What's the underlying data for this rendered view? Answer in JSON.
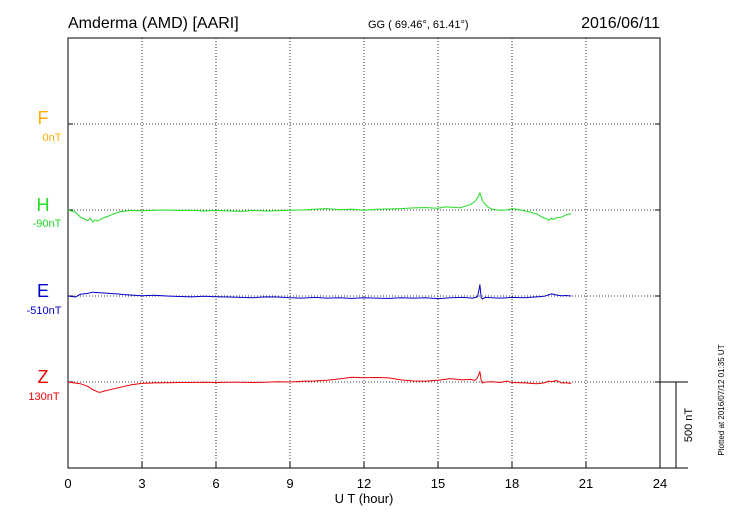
{
  "header": {
    "station": "Amderma (AMD)  [AARI]",
    "coords": "GG ( 69.46°,  61.41°)",
    "date": "2016/06/11"
  },
  "footer": {
    "plotted": "Plotted at 2016/07/12 01:35 UT"
  },
  "colors": {
    "F": "#ffaa00",
    "H": "#22dd22",
    "E": "#0000cc",
    "Z": "#ee0000",
    "grid": "#000000"
  },
  "chart_data": {
    "type": "line",
    "xlabel": "U T (hour)",
    "xlim": [
      0,
      24
    ],
    "xticks": [
      "0",
      "3",
      "6",
      "9",
      "12",
      "15",
      "18",
      "21",
      "24"
    ],
    "scale_bar": "500 nT",
    "scale_bar_nT": 500,
    "series": [
      {
        "name": "F",
        "baseline": "0nT",
        "x": [],
        "y": []
      },
      {
        "name": "H",
        "baseline": "-90nT",
        "x": [
          0.0,
          0.3,
          0.5,
          0.7,
          0.8,
          0.9,
          1.0,
          1.1,
          1.2,
          1.3,
          1.4,
          1.6,
          1.8,
          2.0,
          2.2,
          2.5,
          3.0,
          3.5,
          4.0,
          4.5,
          5.0,
          5.5,
          6.0,
          6.5,
          7.0,
          7.5,
          8.0,
          8.5,
          9.0,
          9.5,
          10.0,
          10.5,
          11.0,
          11.5,
          12.0,
          12.5,
          13.0,
          13.5,
          14.0,
          14.5,
          15.0,
          15.3,
          15.6,
          15.9,
          16.1,
          16.3,
          16.5,
          16.6,
          16.7,
          16.8,
          16.9,
          17.0,
          17.2,
          17.5,
          17.8,
          18.0,
          18.2,
          18.5,
          18.8,
          19.0,
          19.2,
          19.4,
          19.5,
          19.6,
          19.7,
          19.8,
          20.0,
          20.2,
          20.4
        ],
        "y": [
          0,
          -12,
          -40,
          -55,
          -62,
          -48,
          -70,
          -58,
          -64,
          -55,
          -48,
          -38,
          -25,
          -15,
          -8,
          -3,
          -5,
          -2,
          0,
          -3,
          -1,
          -6,
          -3,
          -5,
          -8,
          -3,
          -6,
          -4,
          -2,
          0,
          4,
          8,
          2,
          5,
          -2,
          4,
          6,
          8,
          12,
          14,
          10,
          18,
          16,
          12,
          22,
          30,
          50,
          70,
          100,
          55,
          35,
          20,
          4,
          -2,
          0,
          8,
          4,
          -4,
          -15,
          -22,
          -40,
          -52,
          -60,
          -48,
          -55,
          -45,
          -42,
          -28,
          -22
        ]
      },
      {
        "name": "E",
        "baseline": "-510nT",
        "x": [
          0.0,
          0.3,
          0.5,
          0.8,
          1.0,
          1.2,
          1.4,
          1.6,
          1.8,
          2.0,
          2.3,
          2.6,
          3.0,
          3.5,
          4.0,
          4.5,
          5.0,
          5.5,
          6.0,
          6.5,
          7.0,
          7.5,
          8.0,
          8.5,
          9.0,
          9.5,
          10.0,
          10.5,
          11.0,
          11.5,
          12.0,
          12.5,
          13.0,
          13.5,
          14.0,
          14.5,
          15.0,
          15.5,
          16.0,
          16.4,
          16.6,
          16.7,
          16.75,
          16.8,
          16.9,
          17.2,
          17.5,
          18.0,
          18.5,
          19.0,
          19.3,
          19.5,
          19.6,
          19.8,
          20.0,
          20.2,
          20.4
        ],
        "y": [
          0,
          -6,
          10,
          15,
          22,
          20,
          18,
          16,
          14,
          12,
          8,
          5,
          2,
          4,
          0,
          -3,
          -5,
          -2,
          -4,
          -6,
          -8,
          -10,
          -5,
          -6,
          -10,
          -12,
          -8,
          -12,
          -10,
          -14,
          -10,
          -12,
          -14,
          -10,
          -12,
          -10,
          -15,
          -10,
          -8,
          -12,
          -5,
          65,
          -10,
          -18,
          -8,
          -10,
          -12,
          -8,
          -10,
          -5,
          -2,
          8,
          12,
          6,
          2,
          3,
          0
        ]
      },
      {
        "name": "Z",
        "baseline": "130nT",
        "x": [
          0.0,
          0.2,
          0.5,
          0.8,
          1.0,
          1.1,
          1.2,
          1.3,
          1.4,
          1.5,
          1.7,
          2.0,
          2.3,
          2.6,
          3.0,
          3.5,
          4.0,
          4.5,
          5.0,
          5.5,
          6.0,
          6.5,
          7.0,
          7.5,
          8.0,
          8.5,
          9.0,
          9.5,
          10.0,
          10.5,
          11.0,
          11.5,
          12.0,
          12.5,
          13.0,
          13.5,
          14.0,
          14.5,
          15.0,
          15.5,
          16.0,
          16.3,
          16.5,
          16.6,
          16.7,
          16.75,
          16.8,
          16.9,
          17.2,
          17.5,
          17.8,
          18.0,
          18.5,
          19.0,
          19.3,
          19.5,
          19.6,
          19.8,
          20.0,
          20.2,
          20.4
        ],
        "y": [
          0,
          -4,
          -10,
          -25,
          -45,
          -50,
          -58,
          -60,
          -56,
          -52,
          -45,
          -35,
          -25,
          -15,
          -8,
          -5,
          -4,
          -3,
          -3,
          -2,
          -3,
          -2,
          -2,
          -3,
          -2,
          2,
          0,
          4,
          6,
          10,
          18,
          28,
          25,
          26,
          24,
          12,
          6,
          5,
          10,
          20,
          12,
          15,
          10,
          25,
          60,
          10,
          -5,
          0,
          2,
          -3,
          5,
          -3,
          -5,
          -10,
          -5,
          5,
          2,
          8,
          -5,
          -5,
          -8
        ]
      }
    ]
  }
}
